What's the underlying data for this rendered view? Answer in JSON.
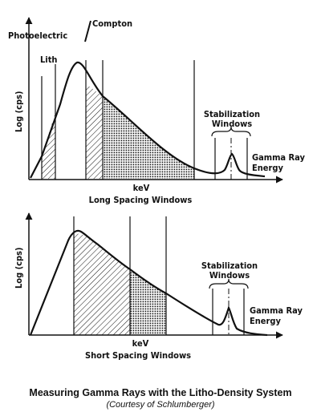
{
  "top_panel": {
    "y_axis_label": "Log (cps)",
    "x_axis_label": "keV",
    "title": "Long Spacing Windows",
    "header_left": "Photoelectric",
    "header_right": "Compton",
    "lith_label": "Lith",
    "stabilization_label_1": "Stabilization",
    "stabilization_label_2": "Windows",
    "gamma_label_1": "Gamma Ray",
    "gamma_label_2": "Energy"
  },
  "bottom_panel": {
    "y_axis_label": "Log (cps)",
    "x_axis_label": "keV",
    "title": "Short Spacing Windows",
    "stabilization_label_1": "Stabilization",
    "stabilization_label_2": "Windows",
    "gamma_label_1": "Gamma Ray",
    "gamma_label_2": "Energy"
  },
  "caption": {
    "title": "Measuring Gamma Rays with the Litho-Density System",
    "credit": "(Courtesy of Schlumberger)"
  }
}
